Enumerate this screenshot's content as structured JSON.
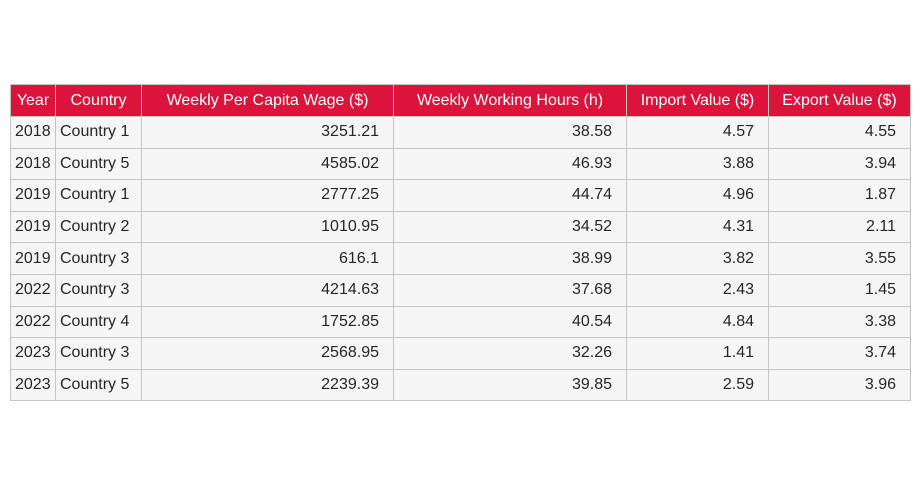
{
  "chart_data": {
    "type": "table",
    "columns": [
      "Year",
      "Country",
      "Weekly Per Capita Wage ($)",
      "Weekly Working Hours (h)",
      "Import Value ($)",
      "Export Value ($)"
    ],
    "rows": [
      [
        "2018",
        "Country 1",
        "3251.21",
        "38.58",
        "4.57",
        "4.55"
      ],
      [
        "2018",
        "Country 5",
        "4585.02",
        "46.93",
        "3.88",
        "3.94"
      ],
      [
        "2019",
        "Country 1",
        "2777.25",
        "44.74",
        "4.96",
        "1.87"
      ],
      [
        "2019",
        "Country 2",
        "1010.95",
        "34.52",
        "4.31",
        "2.11"
      ],
      [
        "2019",
        "Country 3",
        "616.1",
        "38.99",
        "3.82",
        "3.55"
      ],
      [
        "2022",
        "Country 3",
        "4214.63",
        "37.68",
        "2.43",
        "1.45"
      ],
      [
        "2022",
        "Country 4",
        "1752.85",
        "40.54",
        "4.84",
        "3.38"
      ],
      [
        "2023",
        "Country 3",
        "2568.95",
        "32.26",
        "1.41",
        "3.74"
      ],
      [
        "2023",
        "Country 5",
        "2239.39",
        "39.85",
        "2.59",
        "3.96"
      ]
    ],
    "colors": {
      "header_background": "#dc143c",
      "header_text": "#ffffff",
      "cell_background": "#f5f5f5",
      "cell_text": "#262626",
      "grid": "#c4c4c4"
    }
  }
}
